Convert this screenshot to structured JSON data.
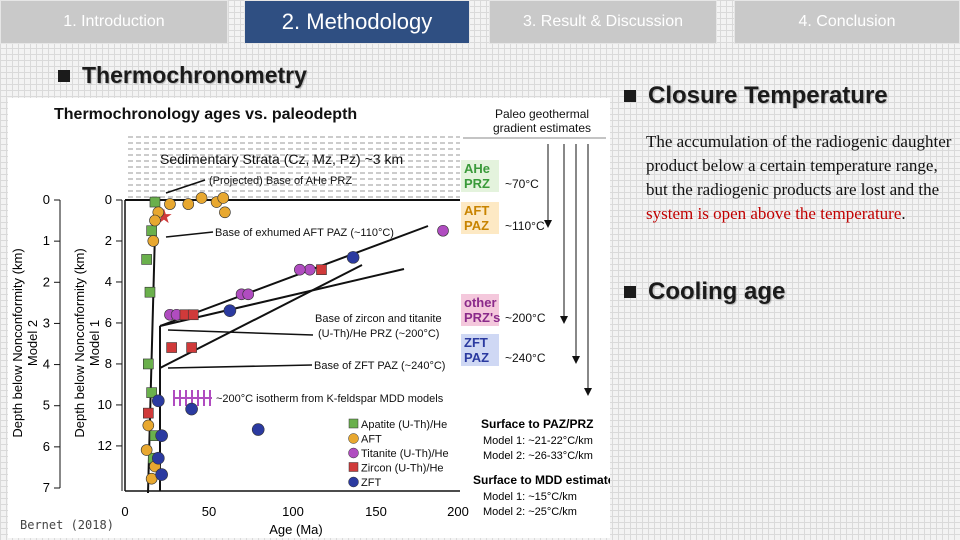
{
  "tabs": [
    {
      "label": "1. Introduction"
    },
    {
      "label": "2. Methodology"
    },
    {
      "label": "3. Result & Discussion"
    },
    {
      "label": "4. Conclusion"
    }
  ],
  "left": {
    "heading": "Thermochronometry"
  },
  "right": {
    "closure_heading": "Closure Temperature",
    "closure_text_plain": "The accumulation of the radiogenic daughter product below a certain temperature range, but the radiogenic products are lost and the ",
    "closure_text_red1": "system is",
    "closure_text_red2": "open above the temperature",
    "closure_text_end": ".",
    "cooling_heading": "Cooling age"
  },
  "credit": "Bernet (2018)",
  "figure": {
    "title": "Thermochronology ages vs. paleodepth",
    "xlabel": "Age (Ma)",
    "x_ticks": [
      "0",
      "50",
      "100",
      "150",
      "200"
    ],
    "ylabel_model2": "Depth below Nonconformity (km)",
    "ylabel_model2_sub": "Model 2",
    "ylabel_model1": "Depth below Nonconformity (km)",
    "ylabel_model1_sub": "Model 1",
    "y_ticks_model2": [
      "0",
      "1",
      "2",
      "3",
      "4",
      "5",
      "6",
      "7"
    ],
    "y_ticks_model1": [
      "0",
      "2",
      "4",
      "6",
      "8",
      "10",
      "12"
    ],
    "strata_label": "Sedimentary Strata (Cz, Mz, Pz) ~3 km",
    "annotations": [
      "(Projected) Base of AHe PRZ",
      "Base of exhumed AFT PAZ (~110°C)",
      "Base of zircon and titanite",
      "(U-Th)/He PRZ (~200°C)",
      "Base of ZFT PAZ (~240°C)",
      "~200°C isotherm from K-feldspar MDD models"
    ],
    "zones_header": [
      "Paleo geothermal",
      "gradient estimates"
    ],
    "zones": [
      {
        "label1": "AHe",
        "label2": "PRZ",
        "temp": "~70°C",
        "color": "#3a9a3a",
        "bg": "#e4f3dd"
      },
      {
        "label1": "AFT",
        "label2": "PAZ",
        "temp": "~110°C",
        "color": "#c88400",
        "bg": "#fde9c4"
      },
      {
        "label1": "other",
        "label2": "PRZ's",
        "temp": "~200°C",
        "color": "#8a2a8a",
        "bg": "#f4c8dc"
      },
      {
        "label1": "ZFT",
        "label2": "PAZ",
        "temp": "~240°C",
        "color": "#2b3aa0",
        "bg": "#cfd8f4"
      }
    ],
    "legend": [
      "Apatite (U-Th)/He",
      "AFT",
      "Titanite (U-Th)/He",
      "Zircon (U-Th)/He",
      "ZFT"
    ],
    "legend_colors": [
      "#6ab04c",
      "#e8a830",
      "#b04cc0",
      "#d03a3a",
      "#2b3aa0"
    ],
    "surface_paz_title": "Surface to PAZ/PRZ",
    "surface_paz_m1": "Model 1: ~21-22°C/km",
    "surface_paz_m2": "Model 2: ~26-33°C/km",
    "surface_mdd_title": "Surface to MDD estimate",
    "surface_mdd_m1": "Model 1: ~15°C/km",
    "surface_mdd_m2": "Model 2: ~25°C/km",
    "points": [
      {
        "t": "apatite",
        "age": 18,
        "d": 0.1
      },
      {
        "t": "apatite",
        "age": 16,
        "d": 1.5
      },
      {
        "t": "apatite",
        "age": 13,
        "d": 2.9
      },
      {
        "t": "apatite",
        "age": 15,
        "d": 4.5
      },
      {
        "t": "apatite",
        "age": 14,
        "d": 8.0
      },
      {
        "t": "apatite",
        "age": 16,
        "d": 9.4
      },
      {
        "t": "apatite",
        "age": 18,
        "d": 11.5
      },
      {
        "t": "apatite",
        "age": 17,
        "d": 12.6
      },
      {
        "t": "aft",
        "age": 20,
        "d": 0.6
      },
      {
        "t": "aft",
        "age": 27,
        "d": 0.2
      },
      {
        "t": "aft",
        "age": 38,
        "d": 0.2
      },
      {
        "t": "aft",
        "age": 46,
        "d": -0.1
      },
      {
        "t": "aft",
        "age": 55,
        "d": 0.1
      },
      {
        "t": "aft",
        "age": 59,
        "d": -0.1
      },
      {
        "t": "aft",
        "age": 60,
        "d": 0.6
      },
      {
        "t": "aft",
        "age": 18,
        "d": 1.0
      },
      {
        "t": "aft",
        "age": 17,
        "d": 2.0
      },
      {
        "t": "aft",
        "age": 14,
        "d": 11.0
      },
      {
        "t": "aft",
        "age": 13,
        "d": 12.2
      },
      {
        "t": "aft",
        "age": 18,
        "d": 13.0
      },
      {
        "t": "aft",
        "age": 16,
        "d": 13.6
      },
      {
        "t": "titanite",
        "age": 191,
        "d": 1.5
      },
      {
        "t": "titanite",
        "age": 111,
        "d": 3.4
      },
      {
        "t": "titanite",
        "age": 105,
        "d": 3.4
      },
      {
        "t": "titanite",
        "age": 70,
        "d": 4.6
      },
      {
        "t": "titanite",
        "age": 74,
        "d": 4.6
      },
      {
        "t": "titanite",
        "age": 27,
        "d": 5.6
      },
      {
        "t": "titanite",
        "age": 31,
        "d": 5.6
      },
      {
        "t": "zircon",
        "age": 118,
        "d": 3.4
      },
      {
        "t": "zircon",
        "age": 36,
        "d": 5.6
      },
      {
        "t": "zircon",
        "age": 41,
        "d": 5.6
      },
      {
        "t": "zircon",
        "age": 28,
        "d": 7.2
      },
      {
        "t": "zircon",
        "age": 40,
        "d": 7.2
      },
      {
        "t": "zircon",
        "age": 14,
        "d": 10.4
      },
      {
        "t": "zfs",
        "age": 137,
        "d": 2.8
      },
      {
        "t": "zfs",
        "age": 63,
        "d": 5.4
      },
      {
        "t": "zfs",
        "age": 20,
        "d": 9.8
      },
      {
        "t": "zfs",
        "age": 40,
        "d": 10.2
      },
      {
        "t": "zfs",
        "age": 80,
        "d": 11.2
      },
      {
        "t": "zfs",
        "age": 22,
        "d": 11.5
      },
      {
        "t": "zfs",
        "age": 20,
        "d": 12.6
      },
      {
        "t": "zfs",
        "age": 22,
        "d": 13.4
      }
    ]
  }
}
